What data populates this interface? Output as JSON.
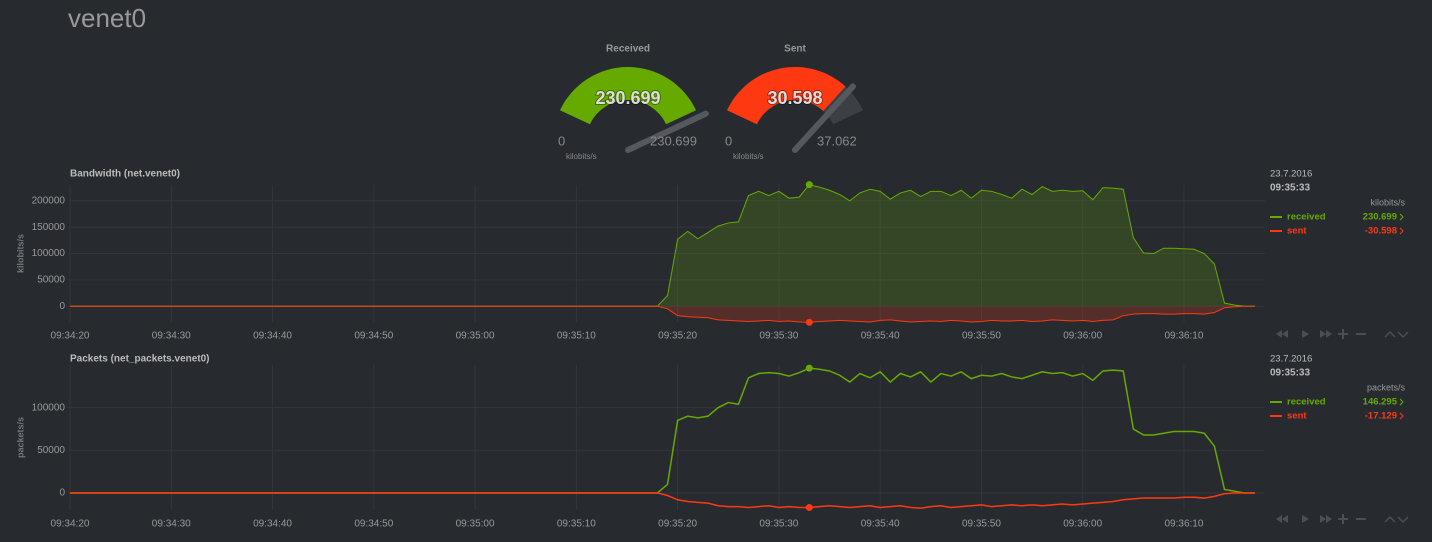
{
  "header": {
    "title": "venet0"
  },
  "gauges": [
    {
      "title": "Received",
      "value": {
        "value": 230699,
        "label": "230.699"
      },
      "min": 0,
      "max": {
        "value": 230699,
        "label": "230.699"
      },
      "unit": "kilobits/s",
      "color": "#66aa00"
    },
    {
      "title": "Sent",
      "value": {
        "value": 30598,
        "label": "30.598"
      },
      "min": 0,
      "max": {
        "value": 37062,
        "label": "37.062"
      },
      "unit": "kilobits/s",
      "color": "#fe3912"
    }
  ],
  "chart_data": [
    {
      "type": "area",
      "title": "Bandwidth (net.venet0)",
      "y_label": "kilobits/s",
      "x": [
        "09:34:20",
        "09:35:17",
        "09:35:18",
        "09:35:19",
        "09:35:20",
        "09:35:21",
        "09:35:22",
        "09:35:23",
        "09:35:24",
        "09:35:25",
        "09:35:26",
        "09:35:27",
        "09:35:28",
        "09:35:29",
        "09:35:30",
        "09:35:31",
        "09:35:32",
        "09:35:33",
        "09:35:34",
        "09:35:35",
        "09:35:36",
        "09:35:37",
        "09:35:38",
        "09:35:39",
        "09:35:40",
        "09:35:41",
        "09:35:42",
        "09:35:43",
        "09:35:44",
        "09:35:45",
        "09:35:46",
        "09:35:47",
        "09:35:48",
        "09:35:49",
        "09:35:50",
        "09:35:51",
        "09:35:52",
        "09:35:53",
        "09:35:54",
        "09:35:55",
        "09:35:56",
        "09:35:57",
        "09:35:58",
        "09:35:59",
        "09:36:00",
        "09:36:01",
        "09:36:02",
        "09:36:03",
        "09:36:04",
        "09:36:05",
        "09:36:06",
        "09:36:07",
        "09:36:08",
        "09:36:09",
        "09:36:10",
        "09:36:11",
        "09:36:12",
        "09:36:13",
        "09:36:14",
        "09:36:15",
        "09:36:16",
        "09:36:17"
      ],
      "xlim": [
        "09:34:20",
        "09:36:18"
      ],
      "xticks": [
        "09:34:20",
        "09:34:30",
        "09:34:40",
        "09:34:50",
        "09:35:00",
        "09:35:10",
        "09:35:20",
        "09:35:30",
        "09:35:40",
        "09:35:50",
        "09:36:00",
        "09:36:10"
      ],
      "ylim": [
        -30000,
        230000
      ],
      "yticks": [
        0,
        50000,
        100000,
        150000,
        200000
      ],
      "grid": true,
      "series": [
        {
          "name": "received",
          "color": "#66aa00",
          "current": {
            "value": 230699,
            "label": "230.699"
          },
          "values": [
            0,
            0,
            0,
            20000,
            127000,
            142000,
            128000,
            140000,
            152000,
            158000,
            160000,
            210000,
            218000,
            210000,
            218000,
            205000,
            207000,
            230699,
            226000,
            220000,
            212000,
            200000,
            215000,
            222000,
            218000,
            203000,
            215000,
            220000,
            208000,
            218000,
            218000,
            210000,
            220000,
            205000,
            220000,
            218000,
            212000,
            205000,
            222000,
            212000,
            227000,
            218000,
            220000,
            218000,
            219000,
            202000,
            225000,
            224000,
            222000,
            130000,
            101000,
            100000,
            110000,
            110000,
            109000,
            108000,
            100000,
            80000,
            6000,
            2000,
            0,
            0
          ]
        },
        {
          "name": "sent",
          "color": "#fe3912",
          "current": {
            "value": -30598,
            "label": "-30.598"
          },
          "values": [
            0,
            0,
            0,
            -5000,
            -18000,
            -20000,
            -21000,
            -22000,
            -26000,
            -27000,
            -28000,
            -29000,
            -28000,
            -27000,
            -29000,
            -28000,
            -30000,
            -30598,
            -29000,
            -28000,
            -27000,
            -28000,
            -29000,
            -30000,
            -27000,
            -26000,
            -28000,
            -30000,
            -29000,
            -28000,
            -29000,
            -27000,
            -28000,
            -30000,
            -29000,
            -27000,
            -28000,
            -28000,
            -27000,
            -29000,
            -28000,
            -26000,
            -27000,
            -28000,
            -27000,
            -29000,
            -27000,
            -26000,
            -18000,
            -15000,
            -14000,
            -14000,
            -15000,
            -15000,
            -14000,
            -14000,
            -15000,
            -12000,
            -3000,
            -1000,
            0,
            0
          ]
        }
      ],
      "legend": {
        "date": "23.7.2016",
        "time": "09:35:33",
        "unit": "kilobits/s"
      }
    },
    {
      "type": "line",
      "title": "Packets (net_packets.venet0)",
      "y_label": "packets/s",
      "x": [
        "09:34:20",
        "09:35:17",
        "09:35:18",
        "09:35:19",
        "09:35:20",
        "09:35:21",
        "09:35:22",
        "09:35:23",
        "09:35:24",
        "09:35:25",
        "09:35:26",
        "09:35:27",
        "09:35:28",
        "09:35:29",
        "09:35:30",
        "09:35:31",
        "09:35:32",
        "09:35:33",
        "09:35:34",
        "09:35:35",
        "09:35:36",
        "09:35:37",
        "09:35:38",
        "09:35:39",
        "09:35:40",
        "09:35:41",
        "09:35:42",
        "09:35:43",
        "09:35:44",
        "09:35:45",
        "09:35:46",
        "09:35:47",
        "09:35:48",
        "09:35:49",
        "09:35:50",
        "09:35:51",
        "09:35:52",
        "09:35:53",
        "09:35:54",
        "09:35:55",
        "09:35:56",
        "09:35:57",
        "09:35:58",
        "09:35:59",
        "09:36:00",
        "09:36:01",
        "09:36:02",
        "09:36:03",
        "09:36:04",
        "09:36:05",
        "09:36:06",
        "09:36:07",
        "09:36:08",
        "09:36:09",
        "09:36:10",
        "09:36:11",
        "09:36:12",
        "09:36:13",
        "09:36:14",
        "09:36:15",
        "09:36:16",
        "09:36:17"
      ],
      "xlim": [
        "09:34:20",
        "09:36:18"
      ],
      "xticks": [
        "09:34:20",
        "09:34:30",
        "09:34:40",
        "09:34:50",
        "09:35:00",
        "09:35:10",
        "09:35:20",
        "09:35:30",
        "09:35:40",
        "09:35:50",
        "09:36:00",
        "09:36:10"
      ],
      "ylim": [
        -20000,
        150000
      ],
      "yticks": [
        0,
        50000,
        100000
      ],
      "grid": true,
      "series": [
        {
          "name": "received",
          "color": "#66aa00",
          "current": {
            "value": 146295,
            "label": "146.295"
          },
          "values": [
            0,
            0,
            0,
            10000,
            85000,
            90000,
            88000,
            90000,
            100000,
            106000,
            104000,
            135000,
            140000,
            141000,
            140000,
            137000,
            141000,
            146295,
            145000,
            143000,
            138000,
            130000,
            140000,
            135000,
            142000,
            130000,
            140000,
            136000,
            142000,
            130000,
            140000,
            137000,
            142000,
            134000,
            138000,
            137000,
            140000,
            136000,
            134000,
            138000,
            142000,
            140000,
            141000,
            137000,
            140000,
            132000,
            143000,
            144000,
            143000,
            75000,
            68000,
            68000,
            70000,
            72000,
            72000,
            72000,
            70000,
            55000,
            4000,
            2000,
            0,
            0
          ]
        },
        {
          "name": "sent",
          "color": "#fe3912",
          "current": {
            "value": -17129,
            "label": "-17.129"
          },
          "values": [
            0,
            0,
            0,
            -3000,
            -8000,
            -10000,
            -11000,
            -12000,
            -15000,
            -16000,
            -16000,
            -17000,
            -16000,
            -15000,
            -17000,
            -16000,
            -17000,
            -17129,
            -16000,
            -15000,
            -16000,
            -17000,
            -16000,
            -15000,
            -17000,
            -16000,
            -15000,
            -17000,
            -18000,
            -16000,
            -15000,
            -17000,
            -16000,
            -15000,
            -14000,
            -16000,
            -15000,
            -14000,
            -15000,
            -14000,
            -15000,
            -14000,
            -13000,
            -14000,
            -13000,
            -12000,
            -11000,
            -10000,
            -8000,
            -7000,
            -6000,
            -6000,
            -6000,
            -6000,
            -5000,
            -5000,
            -6000,
            -4000,
            -1000,
            0,
            0,
            0
          ]
        }
      ],
      "legend": {
        "date": "23.7.2016",
        "time": "09:35:33",
        "unit": "packets/s"
      }
    }
  ]
}
